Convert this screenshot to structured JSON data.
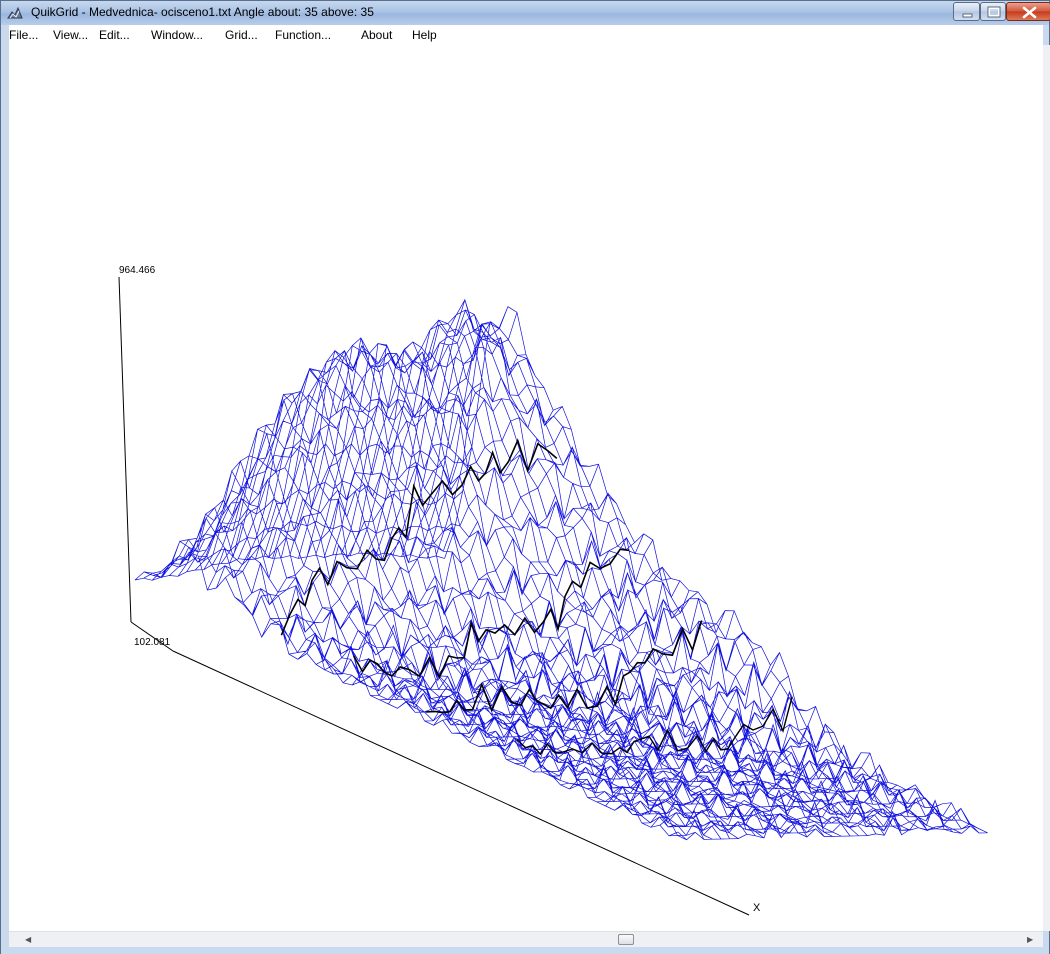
{
  "window": {
    "title": "QuikGrid - Medvednica- ocisceno1.txt Angle about: 35 above: 35",
    "app_icon": "quikgrid-app-icon",
    "caption_buttons": [
      "minimize-icon",
      "maximize-icon",
      "close-icon"
    ]
  },
  "menu": {
    "items": [
      {
        "label": "File..."
      },
      {
        "label": "View..."
      },
      {
        "label": "Edit..."
      },
      {
        "label": "Window..."
      },
      {
        "label": "Grid..."
      },
      {
        "label": "Function..."
      },
      {
        "label": "About"
      },
      {
        "label": "Help"
      }
    ]
  },
  "plot": {
    "z_max_label": "964.466",
    "z_min_label": "102.081",
    "x_axis_label": "X",
    "mesh_color": "#1010e0",
    "contour_color": "#000000",
    "view": {
      "angle_about": 35,
      "angle_above": 35
    }
  },
  "scrollbar": {
    "left_arrow": "scroll-left-icon",
    "right_arrow": "scroll-right-icon"
  },
  "colors": {
    "titlebar": "#a9c2e4",
    "client_bg": "#ffffff"
  }
}
